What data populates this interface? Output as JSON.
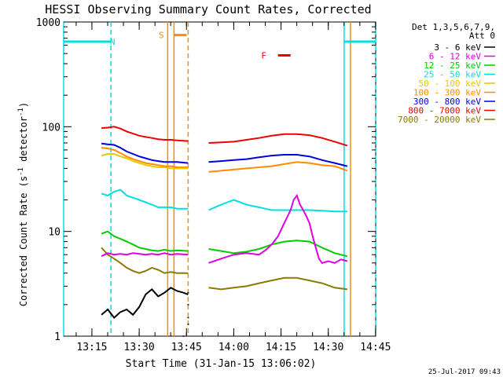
{
  "chart_data": {
    "type": "line",
    "title": "HESSI Observing Summary Count Rates, Corrected",
    "xlabel": "Start Time (31-Jan-15 13:06:02)",
    "ylabel_parts": [
      "Corrected Count Rate (s",
      "-1",
      " detector",
      "-1",
      ")"
    ],
    "yscale": "log",
    "ylim": [
      1,
      1000
    ],
    "xlim_minutes": [
      0,
      99
    ],
    "x_ticks": [
      "13:15",
      "13:30",
      "13:45",
      "14:00",
      "14:15",
      "14:30",
      "14:45"
    ],
    "y_ticks": [
      "1",
      "10",
      "100",
      "1000"
    ],
    "legend_header": [
      "Det 1,3,5,6,7,9,",
      "Att 0"
    ],
    "legend_position": "right",
    "series": [
      {
        "name": "3 - 6 keV",
        "color": "#000000",
        "segments": [
          [
            [
              12,
              1.6
            ],
            [
              14,
              1.8
            ],
            [
              16,
              1.5
            ],
            [
              18,
              1.7
            ],
            [
              20,
              1.8
            ],
            [
              22,
              1.6
            ],
            [
              24,
              1.9
            ],
            [
              26,
              2.5
            ],
            [
              28,
              2.8
            ],
            [
              30,
              2.4
            ],
            [
              32,
              2.6
            ],
            [
              34,
              2.9
            ],
            [
              36,
              2.7
            ],
            [
              38,
              2.6
            ],
            [
              39.5,
              2.5
            ]
          ],
          [
            [
              38,
              1
            ]
          ],
          [
            [
              39.5,
              2.6
            ]
          ],
          [
            [
              39.5,
              2
            ]
          ],
          [
            [
              39.5,
              1.5
            ]
          ],
          [
            [
              39.5,
              1.3
            ]
          ]
        ]
      },
      {
        "name": "6 - 12 keV",
        "color": "#e000e0",
        "segments": [
          [
            [
              12,
              5.8
            ],
            [
              14,
              6.2
            ],
            [
              16,
              6.0
            ],
            [
              18,
              6.1
            ],
            [
              20,
              6.0
            ],
            [
              22,
              6.2
            ],
            [
              24,
              6.1
            ],
            [
              26,
              6.0
            ],
            [
              28,
              6.1
            ],
            [
              30,
              6.0
            ],
            [
              32,
              6.2
            ],
            [
              34,
              6.0
            ],
            [
              36,
              6.1
            ],
            [
              39.5,
              6.0
            ]
          ],
          [
            [
              46,
              5.0
            ],
            [
              50,
              5.5
            ],
            [
              54,
              6.0
            ],
            [
              58,
              6.2
            ],
            [
              62,
              6.0
            ],
            [
              64,
              6.6
            ],
            [
              66,
              7.5
            ],
            [
              68,
              9.0
            ],
            [
              70,
              12.0
            ],
            [
              72,
              16.0
            ],
            [
              73,
              20.0
            ],
            [
              74,
              22.0
            ],
            [
              75,
              18.0
            ],
            [
              76,
              16.0
            ],
            [
              77,
              14.0
            ],
            [
              78,
              12.0
            ],
            [
              79,
              9.0
            ],
            [
              80,
              7.0
            ],
            [
              81,
              5.5
            ],
            [
              82,
              5.0
            ],
            [
              84,
              5.2
            ],
            [
              86,
              5.0
            ],
            [
              88,
              5.4
            ],
            [
              90,
              5.2
            ]
          ]
        ]
      },
      {
        "name": "12 - 25 keV",
        "color": "#00cc00",
        "segments": [
          [
            [
              12,
              9.5
            ],
            [
              14,
              10.0
            ],
            [
              16,
              9.0
            ],
            [
              18,
              8.5
            ],
            [
              20,
              8.0
            ],
            [
              22,
              7.5
            ],
            [
              24,
              7.0
            ],
            [
              26,
              6.8
            ],
            [
              28,
              6.6
            ],
            [
              30,
              6.5
            ],
            [
              32,
              6.7
            ],
            [
              34,
              6.5
            ],
            [
              36,
              6.6
            ],
            [
              39.5,
              6.5
            ]
          ],
          [
            [
              46,
              6.8
            ],
            [
              50,
              6.5
            ],
            [
              54,
              6.2
            ],
            [
              58,
              6.4
            ],
            [
              62,
              6.8
            ],
            [
              66,
              7.5
            ],
            [
              70,
              8.0
            ],
            [
              74,
              8.2
            ],
            [
              78,
              8.0
            ],
            [
              82,
              7.0
            ],
            [
              86,
              6.2
            ],
            [
              90,
              5.8
            ]
          ]
        ]
      },
      {
        "name": "25 - 50 keV",
        "color": "#00e0e0",
        "segments": [
          [
            [
              12,
              23
            ],
            [
              14,
              22
            ],
            [
              16,
              24
            ],
            [
              18,
              25
            ],
            [
              20,
              22
            ],
            [
              22,
              21
            ],
            [
              24,
              20
            ],
            [
              26,
              19
            ],
            [
              28,
              18
            ],
            [
              30,
              17
            ],
            [
              32,
              17
            ],
            [
              34,
              17
            ],
            [
              36,
              16.5
            ],
            [
              39.5,
              16.5
            ]
          ],
          [
            [
              46,
              16
            ],
            [
              48,
              17
            ],
            [
              50,
              18
            ],
            [
              52,
              19
            ],
            [
              54,
              20
            ],
            [
              56,
              19
            ],
            [
              58,
              18
            ],
            [
              60,
              17.5
            ],
            [
              62,
              17
            ],
            [
              64,
              16.5
            ],
            [
              66,
              16
            ],
            [
              70,
              16
            ],
            [
              74,
              16
            ],
            [
              78,
              16
            ],
            [
              82,
              15.8
            ],
            [
              86,
              15.5
            ],
            [
              90,
              15.5
            ]
          ]
        ]
      },
      {
        "name": "50 - 100 keV",
        "color": "#e8c800",
        "segments": [
          [
            [
              12,
              53
            ],
            [
              14,
              55
            ],
            [
              16,
              55
            ],
            [
              18,
              52
            ],
            [
              20,
              50
            ],
            [
              22,
              47
            ],
            [
              24,
              45
            ],
            [
              26,
              43
            ],
            [
              28,
              42
            ],
            [
              30,
              41
            ],
            [
              32,
              41
            ],
            [
              34,
              40
            ],
            [
              36,
              40
            ],
            [
              39.5,
              40
            ]
          ]
        ]
      },
      {
        "name": "100 - 300 keV",
        "color": "#ff8c00",
        "segments": [
          [
            [
              12,
              63
            ],
            [
              14,
              62
            ],
            [
              16,
              60
            ],
            [
              18,
              56
            ],
            [
              20,
              52
            ],
            [
              22,
              49
            ],
            [
              24,
              47
            ],
            [
              26,
              45
            ],
            [
              28,
              44
            ],
            [
              30,
              43
            ],
            [
              32,
              42
            ],
            [
              34,
              42
            ],
            [
              36,
              41
            ],
            [
              39.5,
              41
            ]
          ],
          [
            [
              46,
              37
            ],
            [
              50,
              38
            ],
            [
              54,
              39
            ],
            [
              58,
              40
            ],
            [
              62,
              41
            ],
            [
              66,
              42
            ],
            [
              70,
              44
            ],
            [
              74,
              46
            ],
            [
              78,
              45
            ],
            [
              82,
              43
            ],
            [
              86,
              42
            ],
            [
              90,
              38
            ]
          ]
        ]
      },
      {
        "name": "300 - 800 keV",
        "color": "#0000e0",
        "segments": [
          [
            [
              12,
              69
            ],
            [
              14,
              68
            ],
            [
              16,
              67
            ],
            [
              18,
              63
            ],
            [
              20,
              58
            ],
            [
              22,
              55
            ],
            [
              24,
              52
            ],
            [
              26,
              50
            ],
            [
              28,
              48
            ],
            [
              30,
              47
            ],
            [
              32,
              46
            ],
            [
              34,
              46
            ],
            [
              36,
              46
            ],
            [
              39.5,
              45
            ]
          ],
          [
            [
              46,
              46
            ],
            [
              50,
              47
            ],
            [
              54,
              48
            ],
            [
              58,
              49
            ],
            [
              62,
              51
            ],
            [
              66,
              53
            ],
            [
              70,
              54
            ],
            [
              74,
              54
            ],
            [
              78,
              52
            ],
            [
              82,
              48
            ],
            [
              86,
              45
            ],
            [
              90,
              42
            ]
          ]
        ]
      },
      {
        "name": "800 - 7000 keV",
        "color": "#ee0000",
        "segments": [
          [
            [
              12,
              97
            ],
            [
              14,
              98
            ],
            [
              16,
              100
            ],
            [
              18,
              96
            ],
            [
              20,
              90
            ],
            [
              22,
              86
            ],
            [
              24,
              82
            ],
            [
              26,
              80
            ],
            [
              28,
              78
            ],
            [
              30,
              76
            ],
            [
              32,
              75
            ],
            [
              34,
              75
            ],
            [
              36,
              74
            ],
            [
              39.5,
              73
            ]
          ],
          [
            [
              46,
              70
            ],
            [
              50,
              71
            ],
            [
              54,
              72
            ],
            [
              58,
              75
            ],
            [
              62,
              78
            ],
            [
              66,
              82
            ],
            [
              70,
              85
            ],
            [
              74,
              85
            ],
            [
              78,
              83
            ],
            [
              82,
              78
            ],
            [
              86,
              72
            ],
            [
              90,
              66
            ]
          ]
        ]
      },
      {
        "name": "7000 - 20000 keV",
        "color": "#8a7a00",
        "segments": [
          [
            [
              12,
              7.0
            ],
            [
              14,
              6.0
            ],
            [
              16,
              5.5
            ],
            [
              18,
              5.0
            ],
            [
              20,
              4.5
            ],
            [
              22,
              4.2
            ],
            [
              24,
              4.0
            ],
            [
              26,
              4.2
            ],
            [
              28,
              4.5
            ],
            [
              30,
              4.3
            ],
            [
              32,
              4.0
            ],
            [
              34,
              4.1
            ],
            [
              36,
              4.0
            ],
            [
              39.5,
              4.0
            ]
          ],
          [
            [
              46,
              2.9
            ],
            [
              50,
              2.8
            ],
            [
              54,
              2.9
            ],
            [
              58,
              3.0
            ],
            [
              62,
              3.2
            ],
            [
              66,
              3.4
            ],
            [
              70,
              3.6
            ],
            [
              74,
              3.6
            ],
            [
              78,
              3.4
            ],
            [
              82,
              3.2
            ],
            [
              86,
              2.9
            ],
            [
              90,
              2.8
            ]
          ]
        ]
      }
    ],
    "flags": [
      {
        "label": "N",
        "color": "#00e0e0",
        "segments": [
          [
            0,
            15
          ]
        ],
        "y": 650,
        "label_x": 15.5
      },
      {
        "label": "",
        "color": "#00e0e0",
        "segments": [
          [
            89,
            99
          ]
        ],
        "y": 650,
        "label_x": null
      },
      {
        "label": "S",
        "color": "#ff8c00",
        "segments": [
          [
            35,
            39
          ]
        ],
        "y": 750,
        "label_x": 31
      },
      {
        "label": "F",
        "color": "#ee0000",
        "segments": [
          [
            68,
            72
          ]
        ],
        "y": 480,
        "label_x": 63.5
      }
    ],
    "boundaries": [
      {
        "x": 0,
        "color": "#00e0e0",
        "style": "solid"
      },
      {
        "x": 15,
        "color": "#00e0e0",
        "style": "dash"
      },
      {
        "x": 33,
        "color": "#ff8c00",
        "style": "solid"
      },
      {
        "x": 35,
        "color": "#ff8c00",
        "style": "solid"
      },
      {
        "x": 39.5,
        "color": "#ff8c00",
        "style": "dash"
      },
      {
        "x": 89,
        "color": "#00e0e0",
        "style": "solid"
      },
      {
        "x": 91,
        "color": "#ff8c00",
        "style": "solid"
      },
      {
        "x": 99,
        "color": "#00e0e0",
        "style": "dash"
      }
    ],
    "footer_date": "25-Jul-2017 09:43"
  }
}
